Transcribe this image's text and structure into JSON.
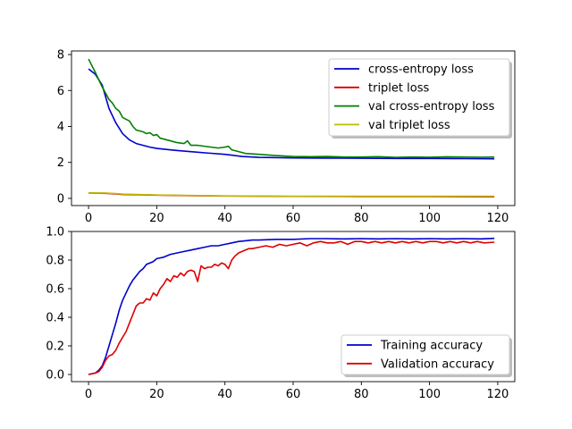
{
  "chart_data": [
    {
      "type": "line",
      "title": "",
      "xlabel": "",
      "ylabel": "",
      "xlim": [
        -5,
        125
      ],
      "ylim": [
        -0.4,
        8.2
      ],
      "xticks": [
        0,
        20,
        40,
        60,
        80,
        100,
        120
      ],
      "yticks": [
        0,
        2,
        4,
        6,
        8
      ],
      "xtick_labels": [
        "0",
        "20",
        "40",
        "60",
        "80",
        "100",
        "120"
      ],
      "ytick_labels": [
        "0",
        "2",
        "4",
        "6",
        "8"
      ],
      "grid": false,
      "legend_position": "top-right",
      "series": [
        {
          "name": "cross-entropy loss",
          "color": "#0000cc",
          "points": [
            [
              0,
              7.2
            ],
            [
              2,
              6.9
            ],
            [
              4,
              6.3
            ],
            [
              6,
              5.0
            ],
            [
              8,
              4.2
            ],
            [
              10,
              3.6
            ],
            [
              12,
              3.25
            ],
            [
              14,
              3.05
            ],
            [
              16,
              2.95
            ],
            [
              18,
              2.85
            ],
            [
              20,
              2.78
            ],
            [
              25,
              2.68
            ],
            [
              30,
              2.6
            ],
            [
              35,
              2.52
            ],
            [
              40,
              2.45
            ],
            [
              45,
              2.33
            ],
            [
              50,
              2.28
            ],
            [
              60,
              2.25
            ],
            [
              70,
              2.24
            ],
            [
              80,
              2.23
            ],
            [
              90,
              2.22
            ],
            [
              100,
              2.22
            ],
            [
              110,
              2.21
            ],
            [
              119,
              2.2
            ]
          ]
        },
        {
          "name": "triplet loss",
          "color": "#dd0000",
          "points": [
            [
              0,
              0.3
            ],
            [
              5,
              0.28
            ],
            [
              10,
              0.22
            ],
            [
              20,
              0.18
            ],
            [
              30,
              0.15
            ],
            [
              40,
              0.13
            ],
            [
              60,
              0.11
            ],
            [
              80,
              0.1
            ],
            [
              100,
              0.1
            ],
            [
              119,
              0.09
            ]
          ]
        },
        {
          "name": "val cross-entropy loss",
          "color": "#008000",
          "points": [
            [
              0,
              7.75
            ],
            [
              2,
              7.0
            ],
            [
              4,
              6.2
            ],
            [
              6,
              5.5
            ],
            [
              7,
              5.3
            ],
            [
              8,
              5.0
            ],
            [
              9,
              4.85
            ],
            [
              10,
              4.5
            ],
            [
              11,
              4.4
            ],
            [
              12,
              4.3
            ],
            [
              13,
              4.0
            ],
            [
              14,
              3.8
            ],
            [
              15,
              3.75
            ],
            [
              16,
              3.7
            ],
            [
              17,
              3.6
            ],
            [
              18,
              3.65
            ],
            [
              19,
              3.5
            ],
            [
              20,
              3.55
            ],
            [
              21,
              3.35
            ],
            [
              22,
              3.3
            ],
            [
              24,
              3.2
            ],
            [
              26,
              3.1
            ],
            [
              28,
              3.05
            ],
            [
              29,
              3.2
            ],
            [
              30,
              2.95
            ],
            [
              32,
              2.95
            ],
            [
              34,
              2.9
            ],
            [
              36,
              2.85
            ],
            [
              38,
              2.8
            ],
            [
              40,
              2.85
            ],
            [
              41,
              2.9
            ],
            [
              42,
              2.7
            ],
            [
              44,
              2.6
            ],
            [
              46,
              2.5
            ],
            [
              50,
              2.45
            ],
            [
              55,
              2.38
            ],
            [
              60,
              2.33
            ],
            [
              65,
              2.32
            ],
            [
              70,
              2.33
            ],
            [
              75,
              2.3
            ],
            [
              80,
              2.3
            ],
            [
              85,
              2.32
            ],
            [
              90,
              2.28
            ],
            [
              95,
              2.3
            ],
            [
              100,
              2.29
            ],
            [
              105,
              2.31
            ],
            [
              110,
              2.3
            ],
            [
              115,
              2.29
            ],
            [
              119,
              2.3
            ]
          ]
        },
        {
          "name": "val triplet loss",
          "color": "#bbbb00",
          "points": [
            [
              0,
              0.3
            ],
            [
              5,
              0.3
            ],
            [
              10,
              0.24
            ],
            [
              20,
              0.19
            ],
            [
              30,
              0.16
            ],
            [
              40,
              0.14
            ],
            [
              60,
              0.12
            ],
            [
              80,
              0.12
            ],
            [
              100,
              0.12
            ],
            [
              119,
              0.12
            ]
          ]
        }
      ]
    },
    {
      "type": "line",
      "title": "",
      "xlabel": "",
      "ylabel": "",
      "xlim": [
        -5,
        125
      ],
      "ylim": [
        -0.05,
        1.0
      ],
      "xticks": [
        0,
        20,
        40,
        60,
        80,
        100,
        120
      ],
      "yticks": [
        0.0,
        0.2,
        0.4,
        0.6,
        0.8,
        1.0
      ],
      "xtick_labels": [
        "0",
        "20",
        "40",
        "60",
        "80",
        "100",
        "120"
      ],
      "ytick_labels": [
        "0.0",
        "0.2",
        "0.4",
        "0.6",
        "0.8",
        "1.0"
      ],
      "grid": false,
      "legend_position": "bottom-right",
      "series": [
        {
          "name": "Training accuracy",
          "color": "#0000cc",
          "points": [
            [
              0,
              0.0
            ],
            [
              2,
              0.01
            ],
            [
              3,
              0.03
            ],
            [
              4,
              0.06
            ],
            [
              5,
              0.12
            ],
            [
              6,
              0.2
            ],
            [
              7,
              0.28
            ],
            [
              8,
              0.36
            ],
            [
              9,
              0.45
            ],
            [
              10,
              0.52
            ],
            [
              11,
              0.57
            ],
            [
              12,
              0.62
            ],
            [
              13,
              0.66
            ],
            [
              14,
              0.69
            ],
            [
              15,
              0.72
            ],
            [
              16,
              0.74
            ],
            [
              17,
              0.77
            ],
            [
              18,
              0.78
            ],
            [
              19,
              0.79
            ],
            [
              20,
              0.81
            ],
            [
              22,
              0.82
            ],
            [
              24,
              0.84
            ],
            [
              26,
              0.85
            ],
            [
              28,
              0.86
            ],
            [
              30,
              0.87
            ],
            [
              32,
              0.88
            ],
            [
              34,
              0.89
            ],
            [
              36,
              0.9
            ],
            [
              38,
              0.9
            ],
            [
              40,
              0.91
            ],
            [
              42,
              0.92
            ],
            [
              44,
              0.93
            ],
            [
              46,
              0.935
            ],
            [
              48,
              0.94
            ],
            [
              50,
              0.94
            ],
            [
              55,
              0.945
            ],
            [
              60,
              0.945
            ],
            [
              65,
              0.95
            ],
            [
              70,
              0.95
            ],
            [
              75,
              0.948
            ],
            [
              80,
              0.95
            ],
            [
              85,
              0.948
            ],
            [
              90,
              0.95
            ],
            [
              95,
              0.948
            ],
            [
              100,
              0.95
            ],
            [
              105,
              0.948
            ],
            [
              110,
              0.95
            ],
            [
              115,
              0.948
            ],
            [
              119,
              0.952
            ]
          ]
        },
        {
          "name": "Validation accuracy",
          "color": "#dd0000",
          "points": [
            [
              0,
              0.0
            ],
            [
              2,
              0.01
            ],
            [
              3,
              0.02
            ],
            [
              4,
              0.05
            ],
            [
              5,
              0.1
            ],
            [
              6,
              0.13
            ],
            [
              7,
              0.14
            ],
            [
              8,
              0.17
            ],
            [
              9,
              0.22
            ],
            [
              10,
              0.26
            ],
            [
              11,
              0.3
            ],
            [
              12,
              0.36
            ],
            [
              13,
              0.42
            ],
            [
              14,
              0.48
            ],
            [
              15,
              0.5
            ],
            [
              16,
              0.5
            ],
            [
              17,
              0.53
            ],
            [
              18,
              0.52
            ],
            [
              19,
              0.57
            ],
            [
              20,
              0.55
            ],
            [
              21,
              0.6
            ],
            [
              22,
              0.63
            ],
            [
              23,
              0.67
            ],
            [
              24,
              0.65
            ],
            [
              25,
              0.69
            ],
            [
              26,
              0.68
            ],
            [
              27,
              0.71
            ],
            [
              28,
              0.69
            ],
            [
              29,
              0.72
            ],
            [
              30,
              0.73
            ],
            [
              31,
              0.72
            ],
            [
              32,
              0.65
            ],
            [
              33,
              0.76
            ],
            [
              34,
              0.74
            ],
            [
              35,
              0.75
            ],
            [
              36,
              0.75
            ],
            [
              37,
              0.77
            ],
            [
              38,
              0.76
            ],
            [
              39,
              0.78
            ],
            [
              40,
              0.77
            ],
            [
              41,
              0.74
            ],
            [
              42,
              0.8
            ],
            [
              43,
              0.83
            ],
            [
              44,
              0.85
            ],
            [
              45,
              0.86
            ],
            [
              46,
              0.87
            ],
            [
              47,
              0.88
            ],
            [
              48,
              0.88
            ],
            [
              50,
              0.89
            ],
            [
              52,
              0.9
            ],
            [
              54,
              0.89
            ],
            [
              56,
              0.91
            ],
            [
              58,
              0.9
            ],
            [
              60,
              0.91
            ],
            [
              62,
              0.92
            ],
            [
              64,
              0.9
            ],
            [
              66,
              0.92
            ],
            [
              68,
              0.93
            ],
            [
              70,
              0.92
            ],
            [
              72,
              0.92
            ],
            [
              74,
              0.93
            ],
            [
              76,
              0.91
            ],
            [
              78,
              0.93
            ],
            [
              80,
              0.93
            ],
            [
              82,
              0.92
            ],
            [
              84,
              0.93
            ],
            [
              86,
              0.92
            ],
            [
              88,
              0.93
            ],
            [
              90,
              0.92
            ],
            [
              92,
              0.93
            ],
            [
              94,
              0.92
            ],
            [
              96,
              0.93
            ],
            [
              98,
              0.92
            ],
            [
              100,
              0.93
            ],
            [
              102,
              0.93
            ],
            [
              104,
              0.92
            ],
            [
              106,
              0.93
            ],
            [
              108,
              0.92
            ],
            [
              110,
              0.93
            ],
            [
              112,
              0.92
            ],
            [
              114,
              0.93
            ],
            [
              116,
              0.92
            ],
            [
              119,
              0.925
            ]
          ]
        }
      ]
    }
  ]
}
